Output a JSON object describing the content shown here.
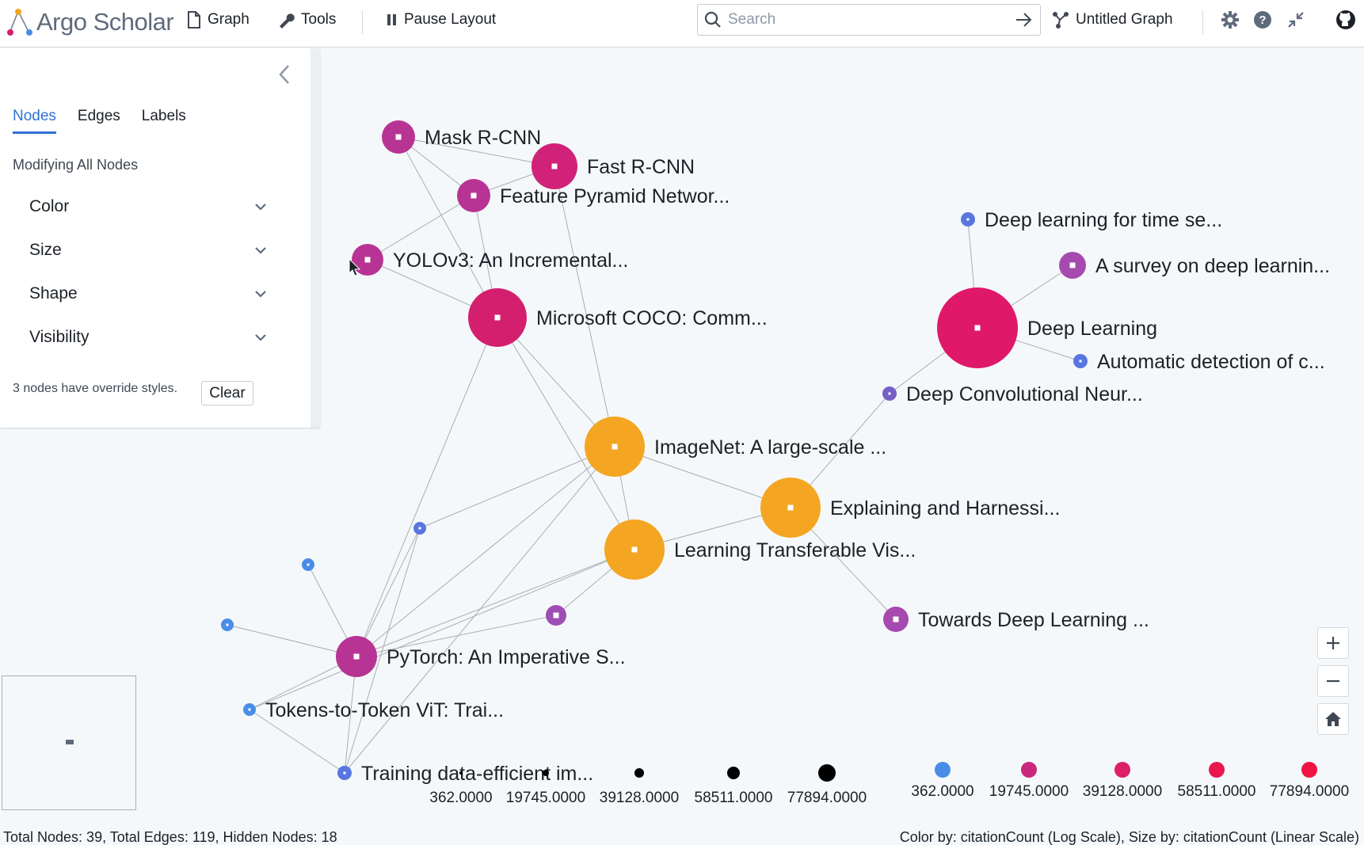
{
  "app": {
    "logo_text": "Argo Scholar"
  },
  "toolbar": {
    "graph_label": "Graph",
    "tools_label": "Tools",
    "pause_label": "Pause Layout",
    "search_placeholder": "Search",
    "graph_title": "Untitled Graph"
  },
  "panel": {
    "tabs": [
      "Nodes",
      "Edges",
      "Labels"
    ],
    "heading": "Modifying All Nodes",
    "sections": [
      "Color",
      "Size",
      "Shape",
      "Visibility"
    ],
    "override_text": "3 nodes have override styles.",
    "clear_label": "Clear"
  },
  "graph": {
    "nodes": [
      {
        "label": "Mask R-CNN",
        "color": "#b83494"
      },
      {
        "label": "Fast R-CNN",
        "color": "#cf2278"
      },
      {
        "label": "Feature Pyramid Networ...",
        "color": "#b83494"
      },
      {
        "label": "YOLOv3: An Incremental...",
        "color": "#b83494"
      },
      {
        "label": "Microsoft COCO: Comm...",
        "color": "#d41f6f"
      },
      {
        "label": "ImageNet: A large-scale ...",
        "color": "#f4a623"
      },
      {
        "label": "Explaining and Harnessi...",
        "color": "#f4a623"
      },
      {
        "label": "Learning Transferable Vis...",
        "color": "#f4a623"
      },
      {
        "label": "Deep Learning",
        "color": "#e0186a"
      },
      {
        "label": "Deep learning for time se...",
        "color": "#5976e0"
      },
      {
        "label": "A survey on deep learnin...",
        "color": "#a64ab0"
      },
      {
        "label": "Automatic detection of c...",
        "color": "#5976e0"
      },
      {
        "label": "Deep Convolutional Neur...",
        "color": "#7560c8"
      },
      {
        "label": "Towards Deep Learning ...",
        "color": "#a64ab0"
      },
      {
        "label": "PyTorch: An Imperative S...",
        "color": "#b83494"
      },
      {
        "label": "Tokens-to-Token ViT: Trai...",
        "color": "#4a8de8"
      },
      {
        "label": "Training data-efficient im...",
        "color": "#5976e0"
      },
      {
        "label": "",
        "color": "#5976e0"
      },
      {
        "label": "",
        "color": "#4a8de8"
      },
      {
        "label": "",
        "color": "#4a8de8"
      },
      {
        "label": "",
        "color": "#9f4db4"
      }
    ],
    "size_legend": [
      "362.0000",
      "19745.0000",
      "39128.0000",
      "58511.0000",
      "77894.0000"
    ],
    "color_legend": [
      {
        "label": "362.0000",
        "color": "#4a8de8"
      },
      {
        "label": "19745.0000",
        "color": "#c8297f"
      },
      {
        "label": "39128.0000",
        "color": "#dc1f67"
      },
      {
        "label": "58511.0000",
        "color": "#ea1650"
      },
      {
        "label": "77894.0000",
        "color": "#f01443"
      }
    ]
  },
  "status": {
    "left": "Total Nodes: 39, Total Edges: 119, Hidden Nodes: 18",
    "right": "Color by: citationCount (Log Scale), Size by: citationCount (Linear Scale)"
  }
}
